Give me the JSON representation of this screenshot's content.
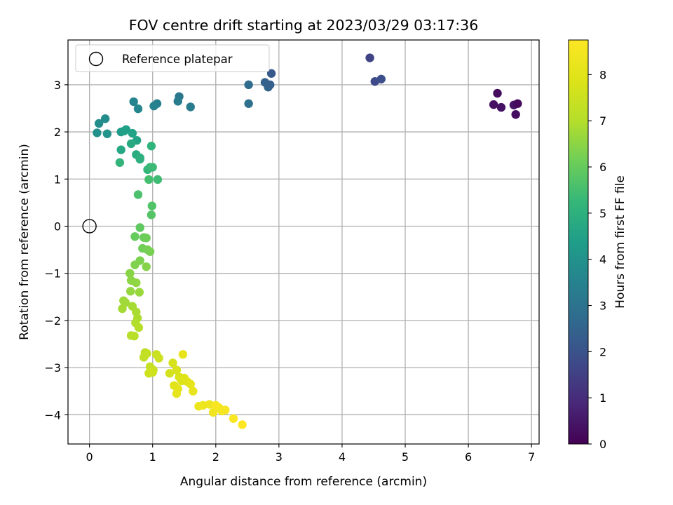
{
  "chart_data": {
    "type": "scatter",
    "title": "FOV centre drift starting at 2023/03/29 03:17:36",
    "xlabel": "Angular distance from reference (arcmin)",
    "ylabel": "Rotation from reference (arcmin)",
    "xlim": [
      -0.34,
      7.12
    ],
    "ylim": [
      -4.62,
      3.95
    ],
    "xticks": [
      0,
      1,
      2,
      3,
      4,
      5,
      6,
      7
    ],
    "yticks": [
      -4,
      -3,
      -2,
      -1,
      0,
      1,
      2,
      3
    ],
    "grid": true,
    "legend": {
      "location": "upper-left",
      "entries": [
        "Reference platepar"
      ]
    },
    "reference_point": {
      "label": "Reference platepar",
      "x": 0,
      "y": 0
    },
    "colorbar": {
      "label": "Hours from first FF file",
      "colormap": "viridis",
      "range": [
        0,
        8.75
      ],
      "ticks": [
        0,
        1,
        2,
        3,
        4,
        5,
        6,
        7,
        8
      ]
    },
    "x": [
      6.46,
      6.4,
      6.52,
      6.72,
      6.78,
      6.75,
      4.44,
      4.52,
      4.62,
      2.52,
      2.52,
      2.78,
      2.83,
      2.88,
      2.86,
      1.42,
      1.4,
      1.6,
      1.07,
      1.02,
      0.7,
      0.77,
      0.25,
      0.15,
      0.12,
      0.28,
      0.5,
      0.58,
      0.55,
      0.68,
      0.75,
      0.5,
      0.66,
      0.74,
      0.8,
      0.8,
      0.98,
      0.48,
      0.92,
      0.96,
      1.0,
      1.08,
      0.94,
      0.77,
      0.99,
      0.98,
      0.8,
      0.72,
      0.86,
      0.9,
      0.84,
      0.92,
      0.96,
      0.8,
      0.72,
      0.9,
      0.64,
      0.66,
      0.74,
      0.65,
      0.79,
      0.54,
      0.57,
      0.52,
      0.68,
      0.74,
      0.76,
      0.73,
      0.78,
      0.66,
      0.71,
      0.88,
      0.86,
      0.91,
      0.96,
      1.01,
      1.06,
      1.1,
      0.94,
      1.0,
      1.27,
      1.32,
      1.38,
      1.42,
      1.46,
      1.5,
      1.55,
      1.34,
      1.4,
      1.6,
      1.38,
      1.48,
      1.64,
      1.73,
      1.8,
      1.9,
      1.96,
      2.05,
      2.1,
      2.15,
      2.0,
      2.28,
      2.42
    ],
    "y": [
      2.82,
      2.58,
      2.52,
      2.57,
      2.6,
      2.37,
      3.57,
      3.07,
      3.12,
      3.0,
      2.6,
      3.05,
      2.95,
      3.24,
      3.0,
      2.75,
      2.65,
      2.53,
      2.6,
      2.55,
      2.64,
      2.49,
      2.28,
      2.18,
      1.98,
      1.96,
      2.0,
      2.05,
      2.02,
      1.97,
      1.82,
      1.62,
      1.75,
      1.52,
      1.45,
      1.42,
      1.7,
      1.35,
      1.2,
      1.25,
      1.25,
      0.99,
      0.99,
      0.67,
      0.43,
      0.24,
      -0.03,
      -0.22,
      -0.24,
      -0.25,
      -0.47,
      -0.5,
      -0.54,
      -0.73,
      -0.82,
      -0.86,
      -1.0,
      -1.15,
      -1.2,
      -1.38,
      -1.4,
      -1.58,
      -1.62,
      -1.75,
      -1.7,
      -1.82,
      -1.95,
      -2.05,
      -2.15,
      -2.32,
      -2.33,
      -2.68,
      -2.78,
      -2.7,
      -2.98,
      -3.05,
      -2.72,
      -2.8,
      -3.12,
      -3.1,
      -3.12,
      -2.9,
      -3.05,
      -3.2,
      -3.28,
      -3.22,
      -3.3,
      -3.38,
      -3.45,
      -3.35,
      -3.55,
      -2.72,
      -3.5,
      -3.82,
      -3.8,
      -3.78,
      -3.95,
      -3.85,
      -3.92,
      -3.9,
      -3.8,
      -4.08,
      -4.21
    ],
    "hours": [
      0.25,
      0.35,
      0.4,
      0.45,
      0.2,
      0.3,
      1.6,
      1.75,
      1.9,
      2.8,
      2.9,
      2.45,
      2.55,
      2.2,
      2.35,
      3.15,
      3.25,
      3.3,
      3.4,
      3.5,
      3.55,
      3.65,
      3.8,
      3.85,
      4.0,
      4.05,
      4.35,
      4.4,
      4.45,
      4.5,
      4.6,
      4.7,
      4.75,
      4.85,
      4.9,
      5.0,
      5.1,
      5.15,
      5.2,
      5.3,
      5.35,
      5.4,
      5.5,
      5.6,
      5.7,
      5.75,
      5.9,
      6.0,
      6.05,
      6.1,
      6.15,
      6.2,
      6.25,
      6.3,
      6.35,
      6.4,
      6.45,
      6.5,
      6.55,
      6.6,
      6.65,
      6.7,
      6.75,
      6.8,
      6.82,
      6.85,
      6.9,
      6.95,
      7.0,
      7.05,
      7.1,
      7.2,
      7.25,
      7.3,
      7.35,
      7.4,
      7.45,
      7.5,
      7.55,
      7.6,
      7.65,
      7.7,
      7.75,
      7.8,
      7.85,
      7.9,
      7.95,
      8.0,
      8.05,
      8.1,
      8.12,
      8.15,
      8.2,
      8.25,
      8.3,
      8.35,
      8.4,
      8.45,
      8.5,
      8.55,
      8.6,
      8.65,
      8.75
    ]
  }
}
